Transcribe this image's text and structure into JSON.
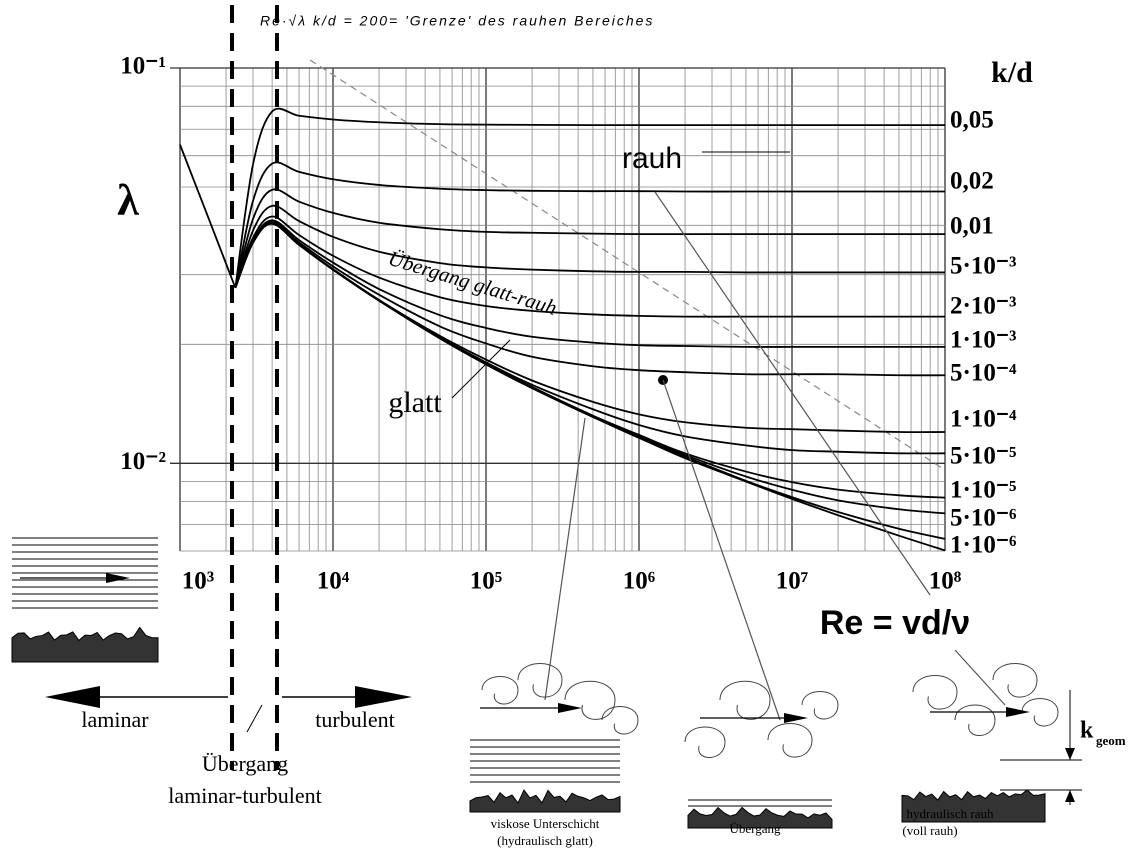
{
  "chart_data": {
    "type": "line",
    "title": "Re·√λ k/d = 200= 'Grenze' des rauhen Bereiches",
    "y_label": "λ",
    "x_label": "Re = vd/ν",
    "legend_title": "k/d",
    "log_x": true,
    "log_y": true,
    "grid": "log",
    "color": "#000000",
    "xlim": [
      1000,
      100000000
    ],
    "ylim": [
      0.006,
      0.1
    ],
    "xticks": [
      {
        "value": 1000,
        "label": "10³"
      },
      {
        "value": 10000,
        "label": "10⁴"
      },
      {
        "value": 100000,
        "label": "10⁵"
      },
      {
        "value": 1000000,
        "label": "10⁶"
      },
      {
        "value": 10000000,
        "label": "10⁷"
      },
      {
        "value": 100000000,
        "label": "10⁸"
      }
    ],
    "yticks": [
      {
        "value": 0.1,
        "label": "10⁻¹"
      },
      {
        "value": 0.01,
        "label": "10⁻²"
      }
    ],
    "x": [
      2300,
      3000,
      4000,
      6000,
      10000,
      20000,
      50000,
      100000,
      200000,
      500000,
      1000000,
      2000000,
      5000000,
      10000000,
      20000000,
      50000000,
      100000000
    ],
    "series": [
      {
        "x": [
          1000,
          1500,
          2000,
          2300
        ],
        "values": [
          0.064,
          0.0427,
          0.032,
          0.0278
        ]
      },
      {
        "name": "0,05",
        "values": [
          0.0278,
          0.057,
          0.0776,
          0.0757,
          0.0741,
          0.0729,
          0.0721,
          0.0719,
          0.0718,
          0.0717,
          0.0717,
          0.0717,
          0.0717,
          0.0717,
          0.0717,
          0.0717,
          0.0717
        ]
      },
      {
        "name": "0,02",
        "values": [
          0.0278,
          0.0461,
          0.0573,
          0.0546,
          0.0523,
          0.0506,
          0.0495,
          0.0491,
          0.0489,
          0.0488,
          0.0488,
          0.0487,
          0.0487,
          0.0487,
          0.0487,
          0.0487,
          0.0487
        ]
      },
      {
        "name": "0,01",
        "values": [
          0.0278,
          0.0415,
          0.0492,
          0.0459,
          0.043,
          0.0406,
          0.0391,
          0.0385,
          0.0383,
          0.0381,
          0.038,
          0.038,
          0.038,
          0.038,
          0.038,
          0.038,
          0.038
        ]
      },
      {
        "name": "5·10⁻³",
        "values": [
          0.0278,
          0.0388,
          0.0448,
          0.041,
          0.0374,
          0.0343,
          0.0321,
          0.0313,
          0.0309,
          0.0306,
          0.0305,
          0.0305,
          0.0304,
          0.0304,
          0.0304,
          0.0304,
          0.0304
        ]
      },
      {
        "name": "2·10⁻³",
        "values": [
          0.0278,
          0.0372,
          0.0421,
          0.0378,
          0.0335,
          0.0295,
          0.0263,
          0.025,
          0.0243,
          0.0238,
          0.0236,
          0.0235,
          0.0235,
          0.0235,
          0.0235,
          0.0235,
          0.0235
        ]
      },
      {
        "name": "1·10⁻³",
        "values": [
          0.0278,
          0.0366,
          0.0412,
          0.0367,
          0.0322,
          0.0276,
          0.0237,
          0.022,
          0.0209,
          0.0202,
          0.0199,
          0.0198,
          0.0197,
          0.0197,
          0.0197,
          0.0197,
          0.0197
        ]
      },
      {
        "name": "5·10⁻⁴",
        "values": [
          0.0278,
          0.0364,
          0.0408,
          0.0362,
          0.0315,
          0.0267,
          0.0222,
          0.0201,
          0.0186,
          0.0176,
          0.0172,
          0.017,
          0.0168,
          0.0168,
          0.0168,
          0.0167,
          0.0167
        ]
      },
      {
        "name": "1·10⁻⁴",
        "values": [
          0.0278,
          0.0362,
          0.0405,
          0.0358,
          0.031,
          0.0259,
          0.021,
          0.0183,
          0.0162,
          0.0143,
          0.0133,
          0.0127,
          0.0123,
          0.0122,
          0.0121,
          0.012,
          0.012
        ]
      },
      {
        "name": "5·10⁻⁵",
        "values": [
          0.0278,
          0.0362,
          0.0404,
          0.0358,
          0.0309,
          0.0258,
          0.0208,
          0.018,
          0.0158,
          0.0137,
          0.0125,
          0.0117,
          0.0111,
          0.0108,
          0.0107,
          0.0106,
          0.0106
        ]
      },
      {
        "name": "1·10⁻⁵",
        "values": [
          0.0278,
          0.0362,
          0.0404,
          0.0357,
          0.0309,
          0.0258,
          0.0207,
          0.0179,
          0.0156,
          0.0132,
          0.0118,
          0.0106,
          0.00953,
          0.00896,
          0.00858,
          0.0083,
          0.00819
        ]
      },
      {
        "name": "5·10⁻⁶",
        "values": [
          0.0278,
          0.0362,
          0.0404,
          0.0357,
          0.0309,
          0.0258,
          0.0207,
          0.0178,
          0.0155,
          0.0131,
          0.0117,
          0.0105,
          0.00926,
          0.00857,
          0.00806,
          0.00765,
          0.00747
        ]
      },
      {
        "name": "1·10⁻⁶",
        "values": [
          0.0278,
          0.0362,
          0.0404,
          0.0357,
          0.0309,
          0.0258,
          0.0207,
          0.0178,
          0.0155,
          0.0131,
          0.0116,
          0.0104,
          0.00903,
          0.00821,
          0.00753,
          0.00683,
          0.00644
        ]
      },
      {
        "name": "glatt",
        "values": [
          0.0278,
          0.0362,
          0.0404,
          0.0357,
          0.0309,
          0.0258,
          0.0207,
          0.0178,
          0.0155,
          0.0131,
          0.0116,
          0.0103,
          0.00899,
          0.00813,
          0.00739,
          0.00656,
          0.00602
        ]
      }
    ],
    "annotations": [
      "rauh",
      "Übergang glatt-rauh",
      "laminar",
      "turbulent",
      "Übergang",
      "laminar-turbulent",
      "viskose Unterschicht",
      "(hydraulisch glatt)",
      "Übergang",
      "hydraulisch rauh",
      "(voll rauh)",
      "k",
      "geom"
    ]
  }
}
